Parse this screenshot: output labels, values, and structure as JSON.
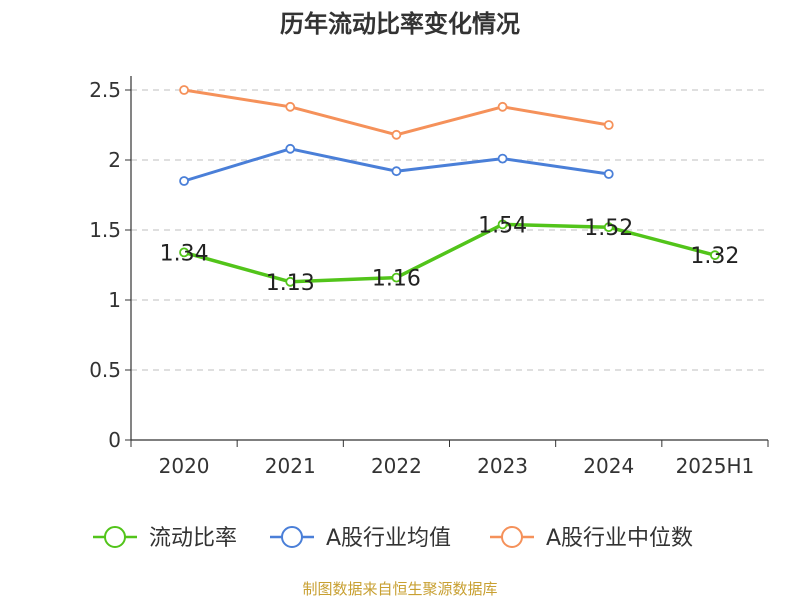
{
  "chart_data": {
    "type": "line",
    "title": "历年流动比率变化情况",
    "categories": [
      "2020",
      "2021",
      "2022",
      "2023",
      "2024",
      "2025H1"
    ],
    "y_ticks": [
      "0",
      "0.5",
      "1",
      "1.5",
      "2",
      "2.5"
    ],
    "ylim": [
      0,
      2.5
    ],
    "grid": true,
    "legend_position": "bottom",
    "series": [
      {
        "name": "流动比率",
        "color": "#52c41a",
        "values": [
          1.34,
          1.13,
          1.16,
          1.54,
          1.52,
          1.32
        ],
        "labels": [
          "1.34",
          "1.13",
          "1.16",
          "1.54",
          "1.52",
          "1.32"
        ]
      },
      {
        "name": "A股行业均值",
        "color": "#4a7fd8",
        "values": [
          1.85,
          2.08,
          1.92,
          2.01,
          1.9,
          null
        ]
      },
      {
        "name": "A股行业中位数",
        "color": "#f5915a",
        "values": [
          2.5,
          2.38,
          2.18,
          2.38,
          2.25,
          null
        ]
      }
    ],
    "source": "制图数据来自恒生聚源数据库",
    "source_color": "#c8a032"
  }
}
